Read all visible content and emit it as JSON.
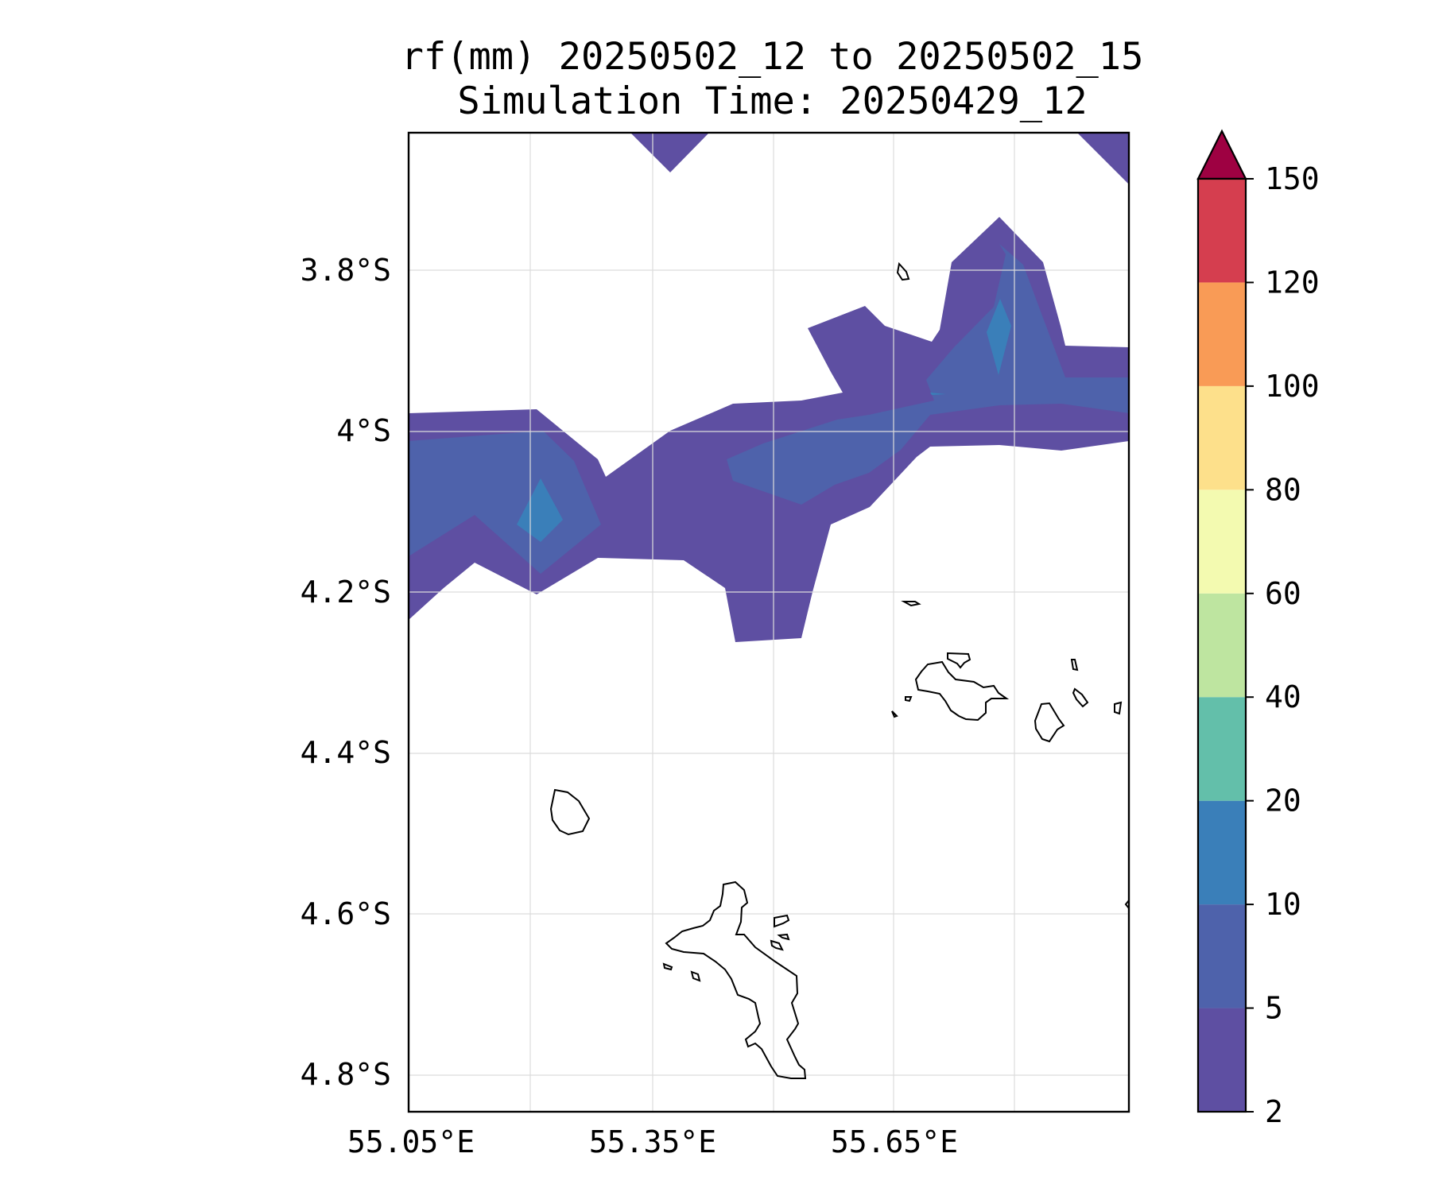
{
  "title": {
    "line1": "rf(mm) 20250502_12 to 20250502_15",
    "line2": "Simulation Time: 20250429_12"
  },
  "map": {
    "lat_labels": [
      "3.8°S",
      "4°S",
      "4.2°S",
      "4.4°S",
      "4.6°S",
      "4.8°S"
    ],
    "lon_labels": [
      "55.05°E",
      "55.35°E",
      "55.65°E"
    ],
    "grid": true,
    "coastline_color": "#000000"
  },
  "colorbar": {
    "labels": [
      "2",
      "5",
      "10",
      "20",
      "40",
      "60",
      "80",
      "100",
      "120",
      "150"
    ],
    "colors": [
      "#5e4fa2",
      "#4e62ab",
      "#3a7fb9",
      "#63bfaa",
      "#bee5a0",
      "#f3fab0",
      "#fde08b",
      "#f99b56",
      "#d53e4f"
    ],
    "extend_color": "#9e0142",
    "extend": "max"
  }
}
